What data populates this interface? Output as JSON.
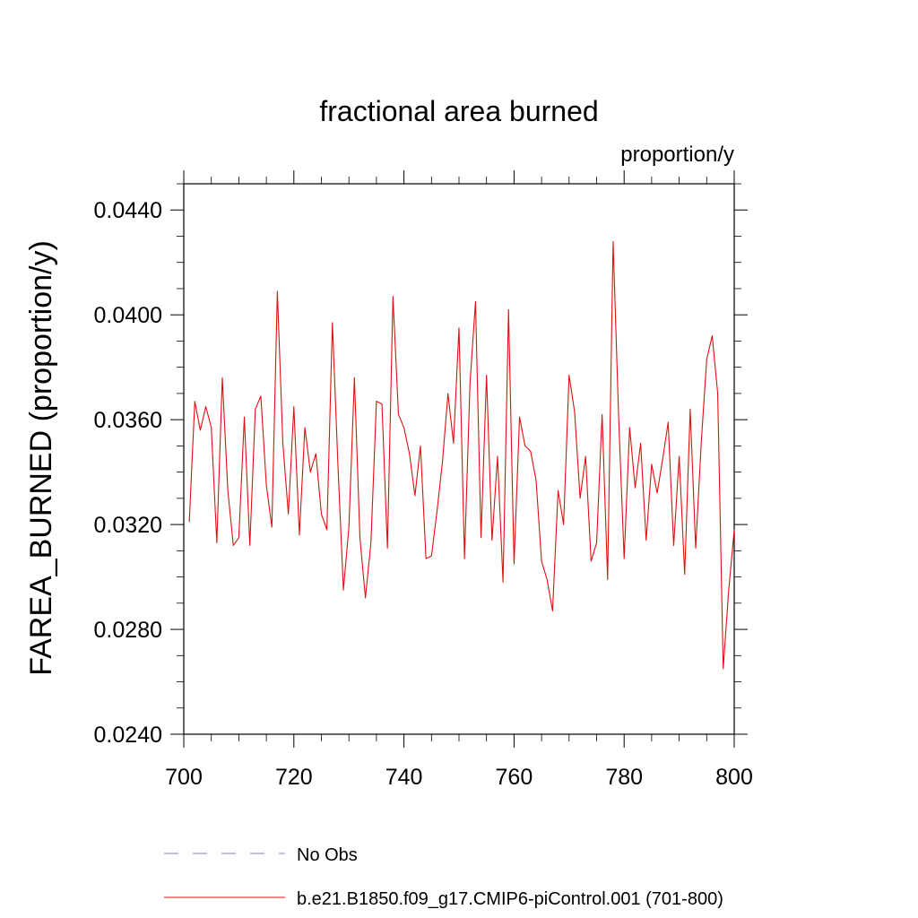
{
  "chart_data": {
    "type": "line",
    "title": "fractional area burned",
    "units_label": "proportion/y",
    "xlabel": "",
    "ylabel": "FAREA_BURNED  (proportion/y)",
    "xlim": [
      700,
      800
    ],
    "ylim": [
      0.024,
      0.045
    ],
    "x_ticks": [
      700,
      720,
      740,
      760,
      780,
      800
    ],
    "y_ticks": [
      0.024,
      0.028,
      0.032,
      0.036,
      0.04,
      0.044
    ],
    "y_tick_labels": [
      "0.0240",
      "0.0280",
      "0.0320",
      "0.0360",
      "0.0400",
      "0.0440"
    ],
    "grid": false,
    "legend_position": "bottom",
    "series": [
      {
        "name": "No Obs",
        "color": "#8080c0",
        "dash": true,
        "x": [],
        "values": []
      },
      {
        "name": "b.e21.B1850.f09_g17.CMIP6-piControl.001 (701-800)",
        "color": "#e01010",
        "dash": false,
        "x": [
          701,
          702,
          703,
          704,
          705,
          706,
          707,
          708,
          709,
          710,
          711,
          712,
          713,
          714,
          715,
          716,
          717,
          718,
          719,
          720,
          721,
          722,
          723,
          724,
          725,
          726,
          727,
          728,
          729,
          730,
          731,
          732,
          733,
          734,
          735,
          736,
          737,
          738,
          739,
          740,
          741,
          742,
          743,
          744,
          745,
          746,
          747,
          748,
          749,
          750,
          751,
          752,
          753,
          754,
          755,
          756,
          757,
          758,
          759,
          760,
          761,
          762,
          763,
          764,
          765,
          766,
          767,
          768,
          769,
          770,
          771,
          772,
          773,
          774,
          775,
          776,
          777,
          778,
          779,
          780,
          781,
          782,
          783,
          784,
          785,
          786,
          787,
          788,
          789,
          790,
          791,
          792,
          793,
          794,
          795,
          796,
          797,
          798,
          799,
          800
        ],
        "values": [
          0.0321,
          0.0367,
          0.0356,
          0.0365,
          0.0357,
          0.0313,
          0.0376,
          0.0333,
          0.0312,
          0.0315,
          0.0361,
          0.0312,
          0.0364,
          0.0369,
          0.0335,
          0.0319,
          0.0409,
          0.0351,
          0.0324,
          0.0365,
          0.0316,
          0.0357,
          0.034,
          0.0347,
          0.0324,
          0.0318,
          0.0397,
          0.0343,
          0.0295,
          0.0319,
          0.0376,
          0.0315,
          0.0292,
          0.0313,
          0.0367,
          0.0366,
          0.0311,
          0.0407,
          0.0362,
          0.0357,
          0.0347,
          0.0331,
          0.035,
          0.0307,
          0.0308,
          0.0325,
          0.0344,
          0.037,
          0.0351,
          0.0395,
          0.0307,
          0.0374,
          0.0405,
          0.0315,
          0.0377,
          0.0314,
          0.0346,
          0.0298,
          0.0402,
          0.0305,
          0.0361,
          0.035,
          0.0348,
          0.0337,
          0.0306,
          0.0299,
          0.0287,
          0.0333,
          0.032,
          0.0377,
          0.0363,
          0.033,
          0.0346,
          0.0306,
          0.0313,
          0.0362,
          0.0299,
          0.0428,
          0.0361,
          0.0307,
          0.0357,
          0.0334,
          0.0351,
          0.0314,
          0.0343,
          0.0332,
          0.0345,
          0.0359,
          0.0312,
          0.0346,
          0.0301,
          0.0364,
          0.0311,
          0.0351,
          0.0383,
          0.0392,
          0.037,
          0.0265,
          0.0295,
          0.0318
        ]
      }
    ]
  }
}
